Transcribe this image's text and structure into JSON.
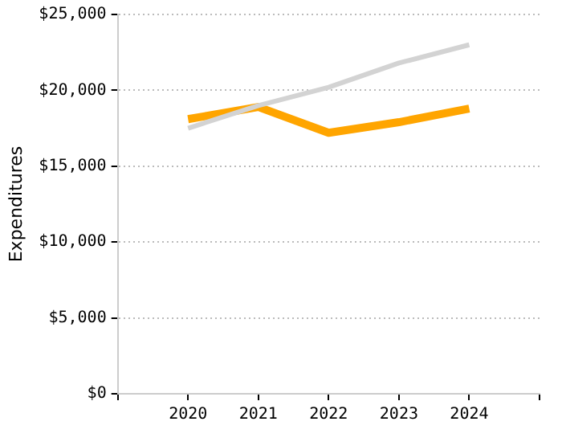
{
  "chart_data": {
    "type": "line",
    "ylabel": "Expenditures",
    "x": [
      2020,
      2021,
      2022,
      2023,
      2024
    ],
    "series": [
      {
        "color": "#d3d3d3",
        "values": [
          17500,
          19000,
          20200,
          21800,
          23000
        ]
      },
      {
        "color": "#ffa500",
        "values": [
          18100,
          18900,
          17200,
          17900,
          18800
        ]
      }
    ],
    "xlim": [
      2019,
      2025
    ],
    "xticks": [
      {
        "value": 2019,
        "label": null
      },
      2020,
      2021,
      2022,
      2023,
      2024,
      {
        "value": 2025,
        "label": null
      }
    ],
    "ylim": [
      0,
      25000
    ],
    "yticks": [
      {
        "value": 0,
        "label": "$0"
      },
      {
        "value": 5000,
        "label": "$5,000"
      },
      {
        "value": 10000,
        "label": "$10,000"
      },
      {
        "value": 15000,
        "label": "$15,000"
      },
      {
        "value": 20000,
        "label": "$20,000"
      },
      {
        "value": 25000,
        "label": "$25,000"
      }
    ],
    "grid": "y",
    "legend": false,
    "marker": "none",
    "line_style": "solid"
  }
}
